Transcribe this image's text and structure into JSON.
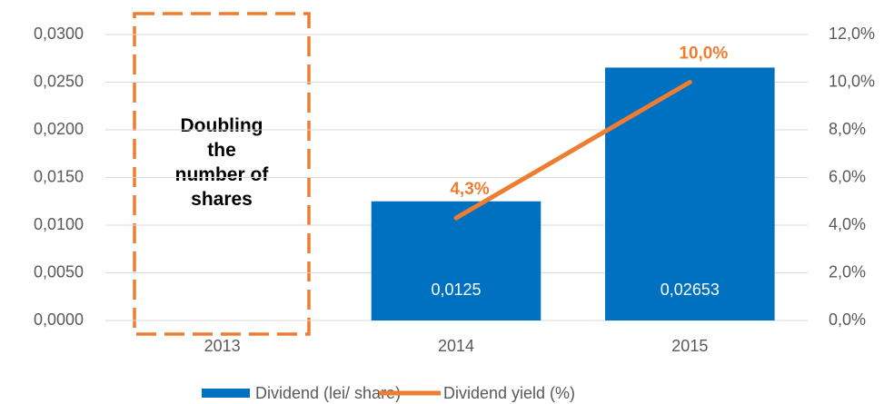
{
  "chart_data": {
    "type": "bar-line",
    "categories": [
      "2013",
      "2014",
      "2015"
    ],
    "series": [
      {
        "name": "Dividend (lei/ share)",
        "color": "#0070c0",
        "type": "bar",
        "values": [
          null,
          0.0125,
          0.02653
        ],
        "value_labels": [
          null,
          "0,0125",
          "0,02653"
        ]
      },
      {
        "name": "Dividend yield (%)",
        "color": "#ed7d31",
        "type": "line",
        "axis": "y2",
        "values": [
          null,
          4.3,
          10.0
        ],
        "value_labels": [
          null,
          "4,3%",
          "10,0%"
        ]
      }
    ],
    "ylim": [
      0,
      0.03
    ],
    "yticks": [
      {
        "value": 0,
        "label": "0,0000"
      },
      {
        "value": 0.005,
        "label": "0,0050"
      },
      {
        "value": 0.01,
        "label": "0,0100"
      },
      {
        "value": 0.015,
        "label": "0,0150"
      },
      {
        "value": 0.02,
        "label": "0,0200"
      },
      {
        "value": 0.025,
        "label": "0,0250"
      },
      {
        "value": 0.03,
        "label": "0,0300"
      }
    ],
    "y2lim": [
      0,
      12
    ],
    "y2ticks": [
      {
        "value": 0,
        "label": "0,0%"
      },
      {
        "value": 2,
        "label": "2,0%"
      },
      {
        "value": 4,
        "label": "4,0%"
      },
      {
        "value": 6,
        "label": "6,0%"
      },
      {
        "value": 8,
        "label": "8,0%"
      },
      {
        "value": 10,
        "label": "10,0%"
      },
      {
        "value": 12,
        "label": "12,0%"
      }
    ],
    "grid": true,
    "legend": "bottom",
    "annotation": "Doubling the number of shares"
  }
}
